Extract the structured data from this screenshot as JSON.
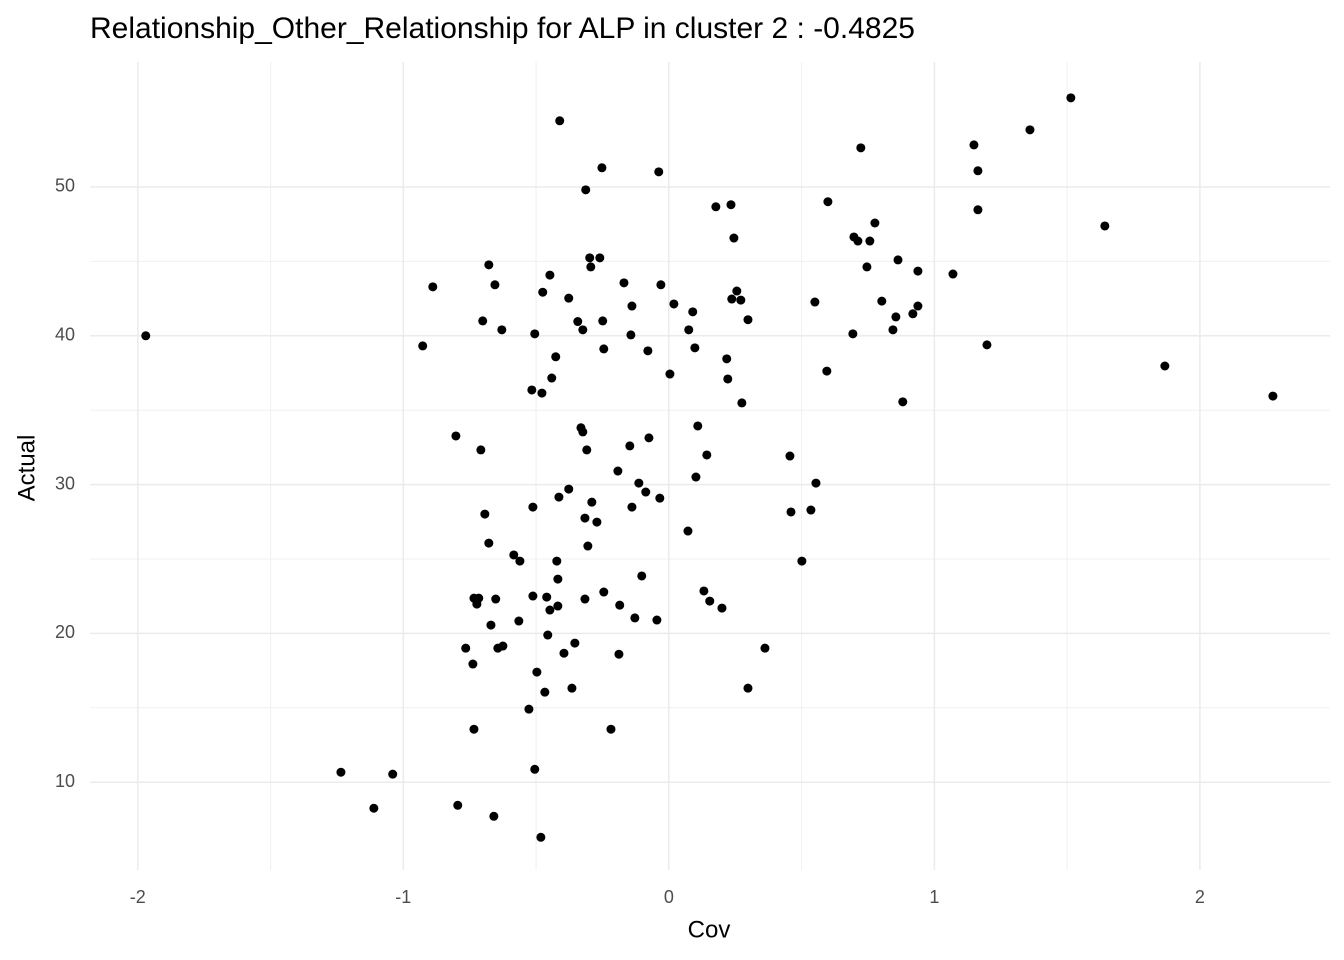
{
  "chart_data": {
    "type": "scatter",
    "title": "Relationship_Other_Relationship for ALP in cluster 2 : -0.4825",
    "x_label": "Cov",
    "y_label": "Actual",
    "xlim": [
      -2.18,
      2.49
    ],
    "ylim": [
      4.1,
      58.4
    ],
    "xticks": [
      -2,
      -1,
      0,
      1,
      2
    ],
    "yticks": [
      10,
      20,
      30,
      40,
      50
    ],
    "grid": true,
    "minor_grid": true,
    "color": "#000000",
    "x": [
      -1.97,
      -1.235,
      -1.111,
      -1.04,
      -0.927,
      -0.889,
      -0.802,
      -0.795,
      -0.765,
      -0.738,
      -0.734,
      -0.734,
      -0.723,
      -0.716,
      -0.708,
      -0.701,
      -0.693,
      -0.678,
      -0.678,
      -0.67,
      -0.659,
      -0.655,
      -0.652,
      -0.644,
      -0.625,
      -0.629,
      -0.584,
      -0.561,
      -0.565,
      -0.527,
      -0.516,
      -0.512,
      -0.512,
      -0.505,
      -0.505,
      -0.497,
      -0.482,
      -0.478,
      -0.475,
      -0.467,
      -0.46,
      -0.456,
      -0.448,
      -0.448,
      -0.441,
      -0.426,
      -0.422,
      -0.418,
      -0.418,
      -0.414,
      -0.411,
      -0.395,
      -0.377,
      -0.377,
      -0.365,
      -0.354,
      -0.343,
      -0.331,
      -0.324,
      -0.324,
      -0.316,
      -0.316,
      -0.313,
      -0.309,
      -0.305,
      -0.298,
      -0.294,
      -0.29,
      -0.271,
      -0.26,
      -0.252,
      -0.249,
      -0.245,
      -0.245,
      -0.218,
      -0.192,
      -0.188,
      -0.185,
      -0.169,
      -0.147,
      -0.143,
      -0.139,
      -0.139,
      -0.128,
      -0.113,
      -0.102,
      -0.087,
      -0.079,
      -0.075,
      -0.045,
      -0.038,
      -0.034,
      -0.03,
      0.004,
      0.019,
      0.072,
      0.075,
      0.09,
      0.098,
      0.102,
      0.109,
      0.132,
      0.143,
      0.154,
      0.177,
      0.2,
      0.218,
      0.222,
      0.234,
      0.237,
      0.245,
      0.256,
      0.271,
      0.275,
      0.298,
      0.298,
      0.362,
      0.456,
      0.46,
      0.501,
      0.535,
      0.55,
      0.554,
      0.595,
      0.599,
      0.693,
      0.697,
      0.712,
      0.723,
      0.746,
      0.757,
      0.776,
      0.802,
      0.844,
      0.855,
      0.863,
      0.881,
      0.919,
      0.938,
      0.938,
      1.07,
      1.149,
      1.164,
      1.164,
      1.198,
      1.36,
      1.514,
      1.642,
      1.868,
      2.275
    ],
    "values": [
      40.0,
      10.67,
      8.25,
      10.54,
      39.32,
      43.29,
      33.27,
      8.45,
      19.01,
      17.94,
      13.56,
      22.37,
      21.97,
      22.37,
      32.33,
      41.0,
      28.02,
      44.77,
      26.07,
      20.56,
      7.71,
      43.43,
      22.31,
      19.01,
      19.15,
      40.4,
      25.27,
      24.86,
      20.83,
      14.91,
      36.36,
      28.49,
      22.51,
      10.87,
      40.13,
      17.4,
      6.3,
      36.15,
      42.93,
      16.05,
      22.44,
      19.89,
      21.57,
      44.08,
      37.16,
      38.59,
      24.86,
      21.84,
      23.65,
      29.16,
      54.45,
      18.67,
      42.53,
      29.7,
      16.32,
      19.35,
      40.96,
      33.82,
      33.54,
      40.4,
      22.31,
      27.75,
      49.81,
      32.33,
      25.87,
      45.24,
      44.63,
      28.82,
      27.48,
      45.24,
      51.29,
      41.0,
      39.12,
      22.78,
      13.56,
      30.91,
      18.6,
      21.9,
      43.56,
      32.6,
      40.06,
      42.0,
      28.49,
      21.04,
      30.1,
      23.86,
      29.5,
      38.99,
      33.14,
      20.9,
      51.02,
      29.09,
      43.43,
      37.43,
      42.14,
      26.88,
      40.4,
      41.61,
      39.19,
      30.51,
      33.94,
      22.85,
      31.99,
      22.17,
      48.67,
      21.7,
      38.45,
      37.1,
      48.81,
      42.47,
      46.57,
      43.01,
      42.4,
      35.49,
      41.08,
      16.32,
      19.01,
      31.92,
      28.16,
      24.86,
      28.29,
      42.27,
      30.1,
      37.63,
      49.01,
      40.13,
      46.64,
      46.37,
      52.63,
      44.63,
      46.37,
      47.58,
      42.33,
      40.4,
      41.27,
      45.1,
      35.56,
      41.48,
      42.0,
      44.35,
      44.15,
      52.83,
      48.47,
      51.09,
      39.39,
      53.84,
      55.99,
      47.38,
      37.97,
      35.95
    ]
  }
}
